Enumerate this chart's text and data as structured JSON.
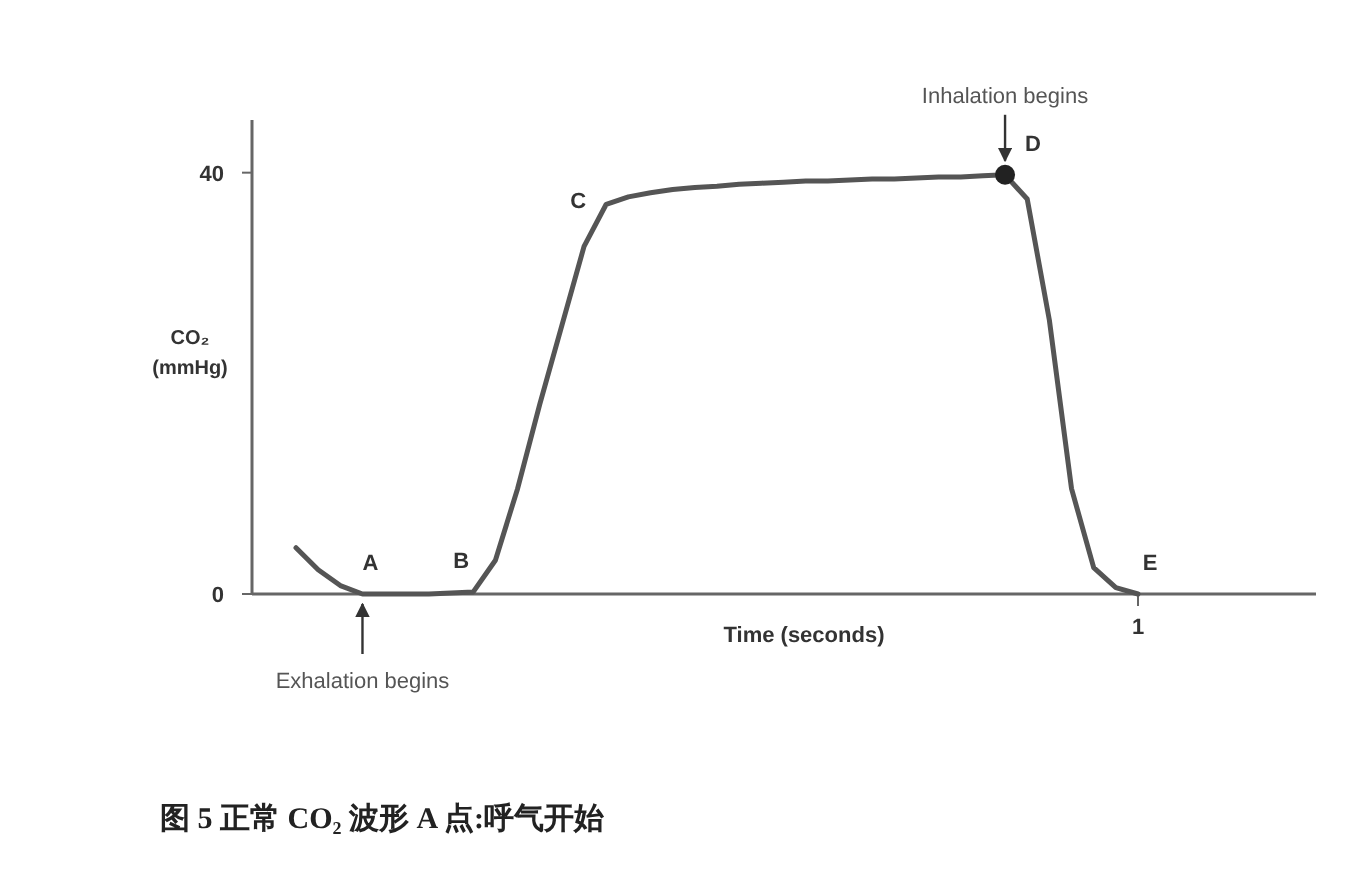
{
  "chart_data": {
    "type": "line",
    "xlabel": "Time (seconds)",
    "ylabel": "CO₂\n(mmHg)",
    "categories": [
      null,
      null,
      null,
      null,
      null,
      null,
      null,
      null,
      null,
      null,
      null,
      null,
      null,
      null,
      null,
      null,
      null,
      null,
      null,
      null,
      null,
      null,
      null,
      null,
      null,
      null,
      null,
      null,
      null,
      null,
      null,
      null,
      null,
      null,
      null,
      null,
      null,
      null,
      "1"
    ],
    "ylim": [
      0,
      45
    ],
    "yticks": [
      0,
      40
    ],
    "series": [
      {
        "color": "#555555",
        "values": [
          4.4,
          2.3,
          0.8,
          0,
          0,
          0,
          0,
          0.1,
          0.2,
          3.2,
          10,
          18,
          25.5,
          33,
          37,
          37.7,
          38.1,
          38.4,
          38.6,
          38.7,
          38.9,
          39,
          39.1,
          39.2,
          39.2,
          39.3,
          39.4,
          39.4,
          39.5,
          39.6,
          39.6,
          39.7,
          39.8,
          37.5,
          26,
          10,
          2.5,
          0.6,
          0
        ],
        "value_labels": [
          null,
          null,
          null,
          "A",
          null,
          null,
          null,
          null,
          "B",
          null,
          null,
          null,
          null,
          null,
          "C",
          null,
          null,
          null,
          null,
          null,
          null,
          null,
          null,
          null,
          null,
          null,
          null,
          null,
          null,
          null,
          null,
          null,
          "D",
          null,
          null,
          null,
          null,
          null,
          "E"
        ]
      },
      {
        "type": "scatter",
        "color": "#222222",
        "values": [
          null,
          null,
          null,
          null,
          null,
          null,
          null,
          null,
          null,
          null,
          null,
          null,
          null,
          null,
          null,
          null,
          null,
          null,
          null,
          null,
          null,
          null,
          null,
          null,
          null,
          null,
          null,
          null,
          null,
          null,
          null,
          null,
          39.8,
          null,
          null,
          null,
          null,
          null,
          null
        ]
      }
    ],
    "annotations": [
      "Exhalation begins",
      "Inhalation begins",
      "图 5 正常 CO₂ 波形 A 点:呼气开始"
    ]
  }
}
